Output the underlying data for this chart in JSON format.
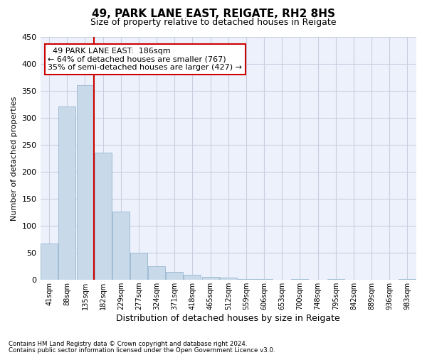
{
  "title1": "49, PARK LANE EAST, REIGATE, RH2 8HS",
  "title2": "Size of property relative to detached houses in Reigate",
  "xlabel": "Distribution of detached houses by size in Reigate",
  "ylabel": "Number of detached properties",
  "footnote1": "Contains HM Land Registry data © Crown copyright and database right 2024.",
  "footnote2": "Contains public sector information licensed under the Open Government Licence v3.0.",
  "annotation_line1": "  49 PARK LANE EAST:  186sqm",
  "annotation_line2": "← 64% of detached houses are smaller (767)",
  "annotation_line3": "35% of semi-detached houses are larger (427) →",
  "bar_color": "#c8d9ea",
  "bar_edge_color": "#a0bcd4",
  "ref_line_color": "#cc0000",
  "ref_line_bin": 3,
  "categories": [
    "41sqm",
    "88sqm",
    "135sqm",
    "182sqm",
    "229sqm",
    "277sqm",
    "324sqm",
    "371sqm",
    "418sqm",
    "465sqm",
    "512sqm",
    "559sqm",
    "606sqm",
    "653sqm",
    "700sqm",
    "748sqm",
    "795sqm",
    "842sqm",
    "889sqm",
    "936sqm",
    "983sqm"
  ],
  "values": [
    67,
    320,
    360,
    235,
    126,
    50,
    25,
    15,
    10,
    6,
    4,
    1,
    1,
    0,
    1,
    0,
    1,
    0,
    0,
    0,
    2
  ],
  "ylim": [
    0,
    450
  ],
  "yticks": [
    0,
    50,
    100,
    150,
    200,
    250,
    300,
    350,
    400,
    450
  ],
  "bg_color": "#edf1fb",
  "grid_color": "#c8cfe0",
  "title1_fontsize": 11,
  "title2_fontsize": 9,
  "ylabel_fontsize": 8,
  "xlabel_fontsize": 9,
  "tick_fontsize": 7,
  "annot_fontsize": 8
}
